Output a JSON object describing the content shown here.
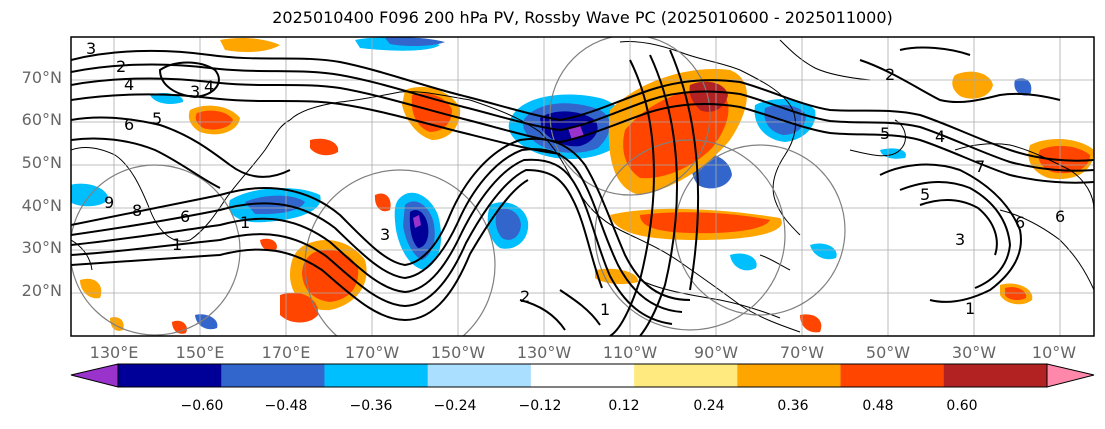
{
  "title": "2025010400 F096 200 hPa PV, Rossby Wave PC (2025010600 - 2025011000)",
  "map": {
    "lat_labels": [
      "70°N",
      "60°N",
      "50°N",
      "40°N",
      "30°N",
      "20°N"
    ],
    "lon_labels": [
      "130°E",
      "150°E",
      "170°E",
      "170°W",
      "150°W",
      "130°W",
      "110°W",
      "90°W",
      "70°W",
      "50°W",
      "30°W",
      "10°W"
    ],
    "contour_labels": [
      "3",
      "2",
      "4",
      "3",
      "4",
      "6",
      "5",
      "2",
      "5",
      "4",
      "7",
      "1",
      "1",
      "9",
      "8",
      "6",
      "3",
      "2",
      "3",
      "6",
      "5",
      "1",
      "6",
      "1"
    ],
    "colors": {
      "ocean": "#ffffff",
      "contour": "#000000",
      "coast": "#000000",
      "grid": "#aaaaaa",
      "circle": "#808080"
    }
  },
  "colorbar": {
    "colors": [
      "#9933cc",
      "#000099",
      "#3366cc",
      "#00bfff",
      "#abdfff",
      "#ffffff",
      "#ffea80",
      "#ffa500",
      "#ff4500",
      "#b22222",
      "#ff88aa"
    ],
    "tick_labels": [
      "−0.60",
      "−0.48",
      "−0.36",
      "−0.24",
      "−0.12",
      "0.12",
      "0.24",
      "0.36",
      "0.48",
      "0.60"
    ],
    "bounds": [
      -0.6,
      -0.48,
      -0.36,
      -0.24,
      -0.12,
      0.12,
      0.24,
      0.36,
      0.48,
      0.6
    ],
    "extend": "both"
  }
}
